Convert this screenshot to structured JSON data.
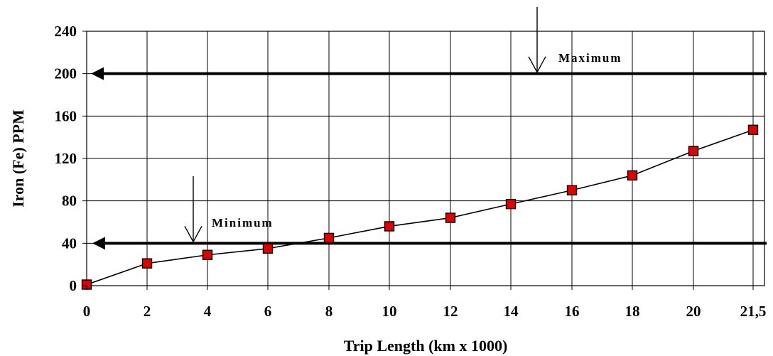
{
  "chart_data": {
    "type": "line",
    "xlabel": "Trip Length (km x 1000)",
    "ylabel": "Iron (Fe) PPM",
    "categories": [
      "0",
      "2",
      "4",
      "6",
      "8",
      "10",
      "12",
      "14",
      "16",
      "18",
      "20",
      "21,5"
    ],
    "series": [
      {
        "values": [
          1,
          21,
          29,
          35,
          45,
          56,
          64,
          77,
          90,
          104,
          127,
          147
        ],
        "line_color": "#000000",
        "marker": "square",
        "marker_color": "#e00000"
      }
    ],
    "ylim": [
      0,
      240
    ],
    "yticks": [
      "0",
      "40",
      "80",
      "120",
      "160",
      "200",
      "240"
    ],
    "grid": true,
    "reference_lines": [
      {
        "label": "Maximum",
        "value": 200
      },
      {
        "label": "Minimum",
        "value": 40
      }
    ]
  }
}
